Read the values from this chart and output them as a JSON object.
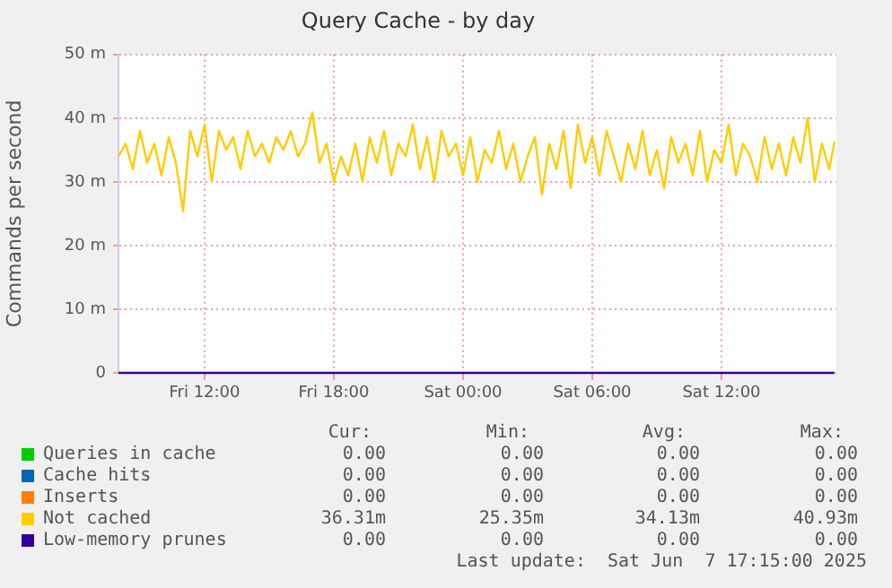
{
  "chart_data": {
    "type": "line",
    "title": "Query Cache - by day",
    "ylabel": "Commands per second",
    "xlim": [
      "2025-06-06T08:00",
      "2025-06-07T17:20"
    ],
    "xticks": [
      {
        "value": "2025-06-06T12:00",
        "label": "Fri 12:00"
      },
      {
        "value": "2025-06-06T18:00",
        "label": "Fri 18:00"
      },
      {
        "value": "2025-06-07T00:00",
        "label": "Sat 00:00"
      },
      {
        "value": "2025-06-07T06:00",
        "label": "Sat 06:00"
      },
      {
        "value": "2025-06-07T12:00",
        "label": "Sat 12:00"
      }
    ],
    "ylim": [
      0,
      50
    ],
    "yticks": [
      0,
      {
        "value": 10,
        "label": "10 m"
      },
      {
        "value": 20,
        "label": "20 m"
      },
      {
        "value": 30,
        "label": "30 m"
      },
      {
        "value": 40,
        "label": "40 m"
      },
      {
        "value": 50,
        "label": "50 m"
      }
    ],
    "grid": true,
    "legend": "bottom",
    "marker": "none",
    "line_style": "solid",
    "x": [
      "2025-06-06T08:00",
      "2025-06-06T08:20",
      "2025-06-06T08:40",
      "2025-06-06T09:00",
      "2025-06-06T09:20",
      "2025-06-06T09:40",
      "2025-06-06T10:00",
      "2025-06-06T10:20",
      "2025-06-06T10:40",
      "2025-06-06T11:00",
      "2025-06-06T11:20",
      "2025-06-06T11:40",
      "2025-06-06T12:00",
      "2025-06-06T12:20",
      "2025-06-06T12:40",
      "2025-06-06T13:00",
      "2025-06-06T13:20",
      "2025-06-06T13:40",
      "2025-06-06T14:00",
      "2025-06-06T14:20",
      "2025-06-06T14:40",
      "2025-06-06T15:00",
      "2025-06-06T15:20",
      "2025-06-06T15:40",
      "2025-06-06T16:00",
      "2025-06-06T16:20",
      "2025-06-06T16:40",
      "2025-06-06T17:00",
      "2025-06-06T17:20",
      "2025-06-06T17:40",
      "2025-06-06T18:00",
      "2025-06-06T18:20",
      "2025-06-06T18:40",
      "2025-06-06T19:00",
      "2025-06-06T19:20",
      "2025-06-06T19:40",
      "2025-06-06T20:00",
      "2025-06-06T20:20",
      "2025-06-06T20:40",
      "2025-06-06T21:00",
      "2025-06-06T21:20",
      "2025-06-06T21:40",
      "2025-06-06T22:00",
      "2025-06-06T22:20",
      "2025-06-06T22:40",
      "2025-06-06T23:00",
      "2025-06-06T23:20",
      "2025-06-06T23:40",
      "2025-06-07T00:00",
      "2025-06-07T00:20",
      "2025-06-07T00:40",
      "2025-06-07T01:00",
      "2025-06-07T01:20",
      "2025-06-07T01:40",
      "2025-06-07T02:00",
      "2025-06-07T02:20",
      "2025-06-07T02:40",
      "2025-06-07T03:00",
      "2025-06-07T03:20",
      "2025-06-07T03:40",
      "2025-06-07T04:00",
      "2025-06-07T04:20",
      "2025-06-07T04:40",
      "2025-06-07T05:00",
      "2025-06-07T05:20",
      "2025-06-07T05:40",
      "2025-06-07T06:00",
      "2025-06-07T06:20",
      "2025-06-07T06:40",
      "2025-06-07T07:00",
      "2025-06-07T07:20",
      "2025-06-07T07:40",
      "2025-06-07T08:00",
      "2025-06-07T08:20",
      "2025-06-07T08:40",
      "2025-06-07T09:00",
      "2025-06-07T09:20",
      "2025-06-07T09:40",
      "2025-06-07T10:00",
      "2025-06-07T10:20",
      "2025-06-07T10:40",
      "2025-06-07T11:00",
      "2025-06-07T11:20",
      "2025-06-07T11:40",
      "2025-06-07T12:00",
      "2025-06-07T12:20",
      "2025-06-07T12:40",
      "2025-06-07T13:00",
      "2025-06-07T13:20",
      "2025-06-07T13:40",
      "2025-06-07T14:00",
      "2025-06-07T14:20",
      "2025-06-07T14:40",
      "2025-06-07T15:00",
      "2025-06-07T15:20",
      "2025-06-07T15:40",
      "2025-06-07T16:00",
      "2025-06-07T16:20",
      "2025-06-07T16:40",
      "2025-06-07T17:00",
      "2025-06-07T17:15"
    ],
    "series": [
      {
        "name": "Queries in cache",
        "color": "#00cc00",
        "values": [
          null,
          null,
          null,
          null,
          null,
          null,
          null,
          null,
          null,
          null,
          null,
          null,
          null,
          null,
          null,
          null,
          null,
          null,
          null,
          null,
          null,
          null,
          null,
          null,
          null,
          null,
          null,
          null,
          null,
          null,
          null,
          null,
          null,
          null,
          null,
          null,
          null,
          null,
          null,
          null,
          null,
          null,
          null,
          null,
          null,
          null,
          null,
          null,
          null,
          null,
          null,
          null,
          null,
          null,
          null,
          null,
          null,
          null,
          null,
          null,
          null,
          null,
          null,
          null,
          null,
          null,
          null,
          null,
          null,
          null,
          null,
          null,
          null,
          null,
          null,
          null,
          null,
          null,
          null,
          null,
          null,
          null,
          null,
          null,
          null,
          null,
          null,
          null,
          null,
          null,
          null,
          null,
          null,
          null,
          null,
          null,
          null,
          null,
          null,
          null,
          null
        ]
      },
      {
        "name": "Cache hits",
        "color": "#0066b3",
        "values": [
          null,
          null,
          null,
          null,
          null,
          null,
          null,
          null,
          null,
          null,
          null,
          null,
          null,
          null,
          null,
          null,
          null,
          null,
          null,
          null,
          null,
          null,
          null,
          null,
          null,
          null,
          null,
          null,
          null,
          null,
          null,
          null,
          null,
          null,
          null,
          null,
          null,
          null,
          null,
          null,
          null,
          null,
          null,
          null,
          null,
          null,
          null,
          null,
          null,
          null,
          null,
          null,
          null,
          null,
          null,
          null,
          null,
          null,
          null,
          null,
          null,
          null,
          null,
          null,
          null,
          null,
          null,
          null,
          null,
          null,
          null,
          null,
          null,
          null,
          null,
          null,
          null,
          null,
          null,
          null,
          null,
          null,
          null,
          null,
          null,
          null,
          null,
          null,
          null,
          null,
          null,
          null,
          null,
          null,
          null,
          null,
          null,
          null,
          null,
          null,
          null
        ]
      },
      {
        "name": "Inserts",
        "color": "#ff8000",
        "values": [
          null,
          null,
          null,
          null,
          null,
          null,
          null,
          null,
          null,
          null,
          null,
          null,
          null,
          null,
          null,
          null,
          null,
          null,
          null,
          null,
          null,
          null,
          null,
          null,
          null,
          null,
          null,
          null,
          null,
          null,
          null,
          null,
          null,
          null,
          null,
          null,
          null,
          null,
          null,
          null,
          null,
          null,
          null,
          null,
          null,
          null,
          null,
          null,
          null,
          null,
          null,
          null,
          null,
          null,
          null,
          null,
          null,
          null,
          null,
          null,
          null,
          null,
          null,
          null,
          null,
          null,
          null,
          null,
          null,
          null,
          null,
          null,
          null,
          null,
          null,
          null,
          null,
          null,
          null,
          null,
          null,
          null,
          null,
          null,
          null,
          null,
          null,
          null,
          null,
          null,
          null,
          null,
          null,
          null,
          null,
          null,
          null,
          null,
          null,
          null,
          null
        ]
      },
      {
        "name": "Not cached",
        "color": "#ffcc00",
        "values": [
          34,
          36,
          32,
          38,
          33,
          36,
          31,
          37,
          33,
          25.4,
          38,
          34,
          39,
          30,
          38,
          35,
          37,
          32,
          38,
          34,
          36,
          33,
          37,
          35,
          38,
          34,
          36,
          40.9,
          33,
          36,
          30,
          34,
          31,
          36,
          30,
          37,
          33,
          38,
          31,
          36,
          34,
          39,
          32,
          37,
          30,
          38,
          34,
          36,
          31,
          37,
          30,
          35,
          33,
          38,
          32,
          36,
          30,
          34,
          37,
          28,
          36,
          32,
          38,
          29,
          39,
          33,
          37,
          31,
          38,
          34,
          30,
          36,
          32,
          38,
          31,
          35,
          29,
          37,
          33,
          36,
          31,
          38,
          30,
          35,
          33,
          39,
          31,
          36,
          34,
          30,
          37,
          32,
          36,
          31,
          37,
          33,
          40,
          30,
          36,
          32,
          36.3
        ]
      },
      {
        "name": "Low-memory prunes",
        "color": "#330099",
        "x": [
          "2025-06-06T08:00",
          "2025-06-07T17:15"
        ],
        "values": [
          0,
          0
        ]
      }
    ],
    "annotations": [
      "Cur:",
      "Min:",
      "Avg:",
      "Max:",
      "0.00",
      "0.00",
      "0.00",
      "0.00",
      "0.00",
      "0.00",
      "0.00",
      "0.00",
      "0.00",
      "0.00",
      "0.00",
      "0.00",
      "36.31m",
      "25.35m",
      "34.13m",
      "40.93m",
      "0.00",
      "0.00",
      "0.00",
      "0.00",
      "Last update:  Sat Jun  7 17:15:00 2025"
    ]
  }
}
